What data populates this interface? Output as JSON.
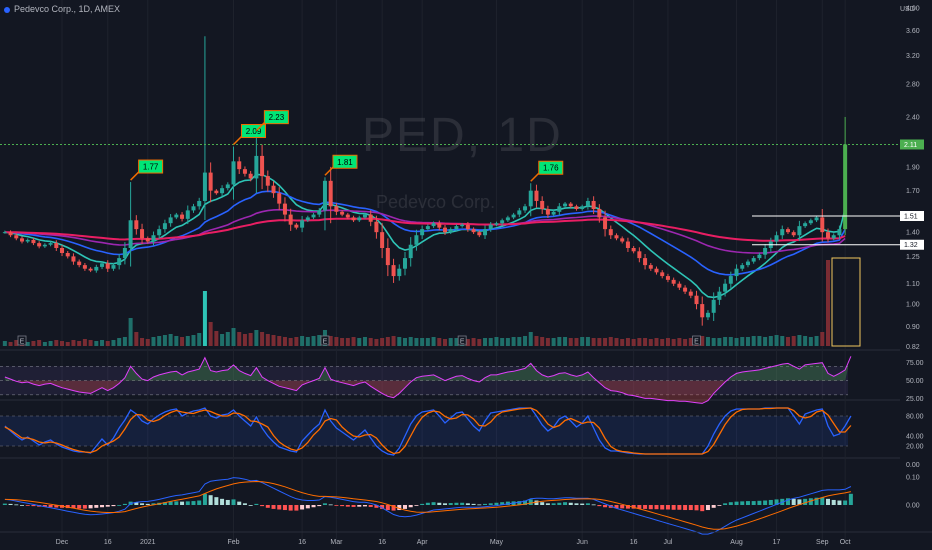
{
  "header": {
    "title": "Pedevco Corp., 1D, AMEX"
  },
  "watermark": {
    "ticker": "PED, 1D",
    "name": "Pedevco Corp."
  },
  "currency": "USD",
  "colors": {
    "bg": "#131722",
    "up": "#26a69a",
    "down": "#ef5350",
    "green": "#4caf50",
    "ema_fast": "#2ec4b6",
    "ema_mid": "#2962ff",
    "ema_slow": "#c2185b",
    "ema_long": "#e91e63"
  },
  "chart_data": [
    {
      "id": "price",
      "type": "candlestick",
      "scale": "log",
      "ylim": [
        0.8,
        4.2
      ],
      "y_ticks": [
        "0.82",
        "0.90",
        "1.00",
        "1.10",
        "1.25",
        "1.40",
        "1.50",
        "1.70",
        "1.90",
        "2.40",
        "2.80",
        "3.20",
        "3.60",
        "4.00"
      ],
      "x_ticks": [
        "Dec",
        "16",
        "2021",
        "Feb",
        "16",
        "Mar",
        "16",
        "Apr",
        "May",
        "Jun",
        "16",
        "Jul",
        "Aug",
        "17",
        "Sep",
        "Oct"
      ],
      "price_tags": [
        "2.11",
        "1.51",
        "1.32"
      ],
      "peak_labels": [
        {
          "text": "1.77",
          "date_index": 22
        },
        {
          "text": "2.09",
          "date_index": 40
        },
        {
          "text": "2.23",
          "date_index": 44
        },
        {
          "text": "1.81",
          "date_index": 56
        },
        {
          "text": "1.76",
          "date_index": 92
        }
      ],
      "volume_markers": [
        "E",
        "E",
        "E",
        "E"
      ],
      "close": [
        1.4,
        1.38,
        1.36,
        1.34,
        1.35,
        1.33,
        1.31,
        1.32,
        1.33,
        1.3,
        1.27,
        1.25,
        1.22,
        1.2,
        1.18,
        1.17,
        1.19,
        1.21,
        1.18,
        1.2,
        1.24,
        1.3,
        1.48,
        1.42,
        1.36,
        1.34,
        1.38,
        1.42,
        1.46,
        1.5,
        1.52,
        1.49,
        1.55,
        1.58,
        1.62,
        1.85,
        1.7,
        1.68,
        1.72,
        1.75,
        1.95,
        1.88,
        1.84,
        1.8,
        2.0,
        1.82,
        1.74,
        1.68,
        1.6,
        1.52,
        1.45,
        1.43,
        1.48,
        1.5,
        1.52,
        1.55,
        1.78,
        1.58,
        1.54,
        1.52,
        1.5,
        1.48,
        1.5,
        1.52,
        1.47,
        1.4,
        1.3,
        1.2,
        1.14,
        1.18,
        1.24,
        1.32,
        1.38,
        1.42,
        1.44,
        1.46,
        1.43,
        1.4,
        1.42,
        1.44,
        1.45,
        1.42,
        1.4,
        1.38,
        1.42,
        1.45,
        1.46,
        1.48,
        1.5,
        1.52,
        1.55,
        1.58,
        1.7,
        1.62,
        1.56,
        1.52,
        1.54,
        1.58,
        1.6,
        1.58,
        1.56,
        1.58,
        1.62,
        1.56,
        1.5,
        1.42,
        1.38,
        1.36,
        1.34,
        1.3,
        1.28,
        1.24,
        1.2,
        1.18,
        1.16,
        1.14,
        1.12,
        1.1,
        1.08,
        1.06,
        1.04,
        1.0,
        0.94,
        0.96,
        1.02,
        1.06,
        1.1,
        1.14,
        1.18,
        1.2,
        1.22,
        1.24,
        1.26,
        1.3,
        1.34,
        1.38,
        1.42,
        1.4,
        1.38,
        1.44,
        1.46,
        1.48,
        1.5,
        1.4,
        1.36,
        1.38,
        1.42,
        2.11
      ],
      "ema_periods": [
        8,
        21,
        50,
        100
      ]
    },
    {
      "id": "volume",
      "type": "bar",
      "values": [
        5,
        4,
        6,
        5,
        4,
        5,
        6,
        4,
        5,
        6,
        5,
        4,
        6,
        5,
        7,
        6,
        5,
        6,
        5,
        6,
        8,
        9,
        28,
        14,
        8,
        7,
        9,
        10,
        11,
        12,
        10,
        9,
        10,
        11,
        13,
        55,
        24,
        15,
        12,
        14,
        18,
        14,
        12,
        13,
        16,
        14,
        12,
        11,
        10,
        9,
        8,
        9,
        10,
        9,
        10,
        11,
        16,
        10,
        9,
        8,
        8,
        9,
        8,
        9,
        8,
        7,
        8,
        9,
        10,
        9,
        8,
        9,
        8,
        8,
        8,
        9,
        8,
        7,
        8,
        8,
        8,
        7,
        8,
        7,
        8,
        8,
        9,
        8,
        8,
        9,
        9,
        10,
        14,
        10,
        9,
        8,
        8,
        9,
        9,
        8,
        8,
        9,
        9,
        8,
        8,
        8,
        9,
        8,
        7,
        8,
        7,
        8,
        8,
        7,
        8,
        7,
        8,
        7,
        8,
        7,
        8,
        9,
        10,
        9,
        8,
        8,
        9,
        9,
        8,
        9,
        9,
        10,
        10,
        9,
        10,
        11,
        10,
        9,
        10,
        11,
        10,
        9,
        10,
        14,
        86
      ]
    },
    {
      "id": "rsi",
      "type": "line",
      "levels": [
        70,
        50,
        30
      ],
      "y_ticks": [
        "75.00",
        "50.00",
        "25.00"
      ],
      "values": [
        55,
        52,
        49,
        47,
        48,
        45,
        43,
        45,
        46,
        43,
        40,
        38,
        36,
        34,
        33,
        32,
        36,
        40,
        36,
        40,
        46,
        54,
        70,
        60,
        52,
        50,
        55,
        58,
        60,
        62,
        63,
        58,
        62,
        64,
        66,
        82,
        64,
        62,
        64,
        65,
        72,
        64,
        60,
        57,
        68,
        55,
        50,
        46,
        42,
        40,
        38,
        36,
        44,
        47,
        50,
        53,
        68,
        52,
        49,
        47,
        45,
        43,
        46,
        48,
        42,
        37,
        32,
        28,
        26,
        32,
        40,
        48,
        54,
        56,
        57,
        58,
        54,
        50,
        53,
        56,
        57,
        53,
        50,
        48,
        54,
        58,
        58,
        60,
        62,
        63,
        65,
        67,
        74,
        64,
        58,
        55,
        57,
        60,
        61,
        58,
        56,
        58,
        62,
        54,
        47,
        40,
        36,
        35,
        33,
        30,
        29,
        27,
        25,
        25,
        24,
        23,
        22,
        22,
        21,
        21,
        20,
        19,
        18,
        22,
        32,
        40,
        48,
        55,
        60,
        62,
        63,
        64,
        65,
        67,
        69,
        71,
        73,
        74,
        70,
        66,
        72,
        73,
        74,
        75,
        60,
        56,
        60,
        65,
        84
      ]
    },
    {
      "id": "stochastic",
      "type": "line",
      "levels": [
        80,
        20
      ],
      "y_ticks": [
        "80.00",
        "40.00",
        "20.00",
        "0.00"
      ],
      "k": [
        60,
        50,
        40,
        32,
        38,
        30,
        22,
        28,
        32,
        24,
        18,
        14,
        10,
        8,
        8,
        6,
        20,
        34,
        22,
        36,
        56,
        72,
        92,
        84,
        70,
        64,
        74,
        82,
        88,
        92,
        94,
        80,
        86,
        90,
        92,
        96,
        80,
        76,
        82,
        84,
        92,
        80,
        70,
        60,
        78,
        56,
        40,
        28,
        18,
        14,
        10,
        8,
        30,
        42,
        54,
        64,
        92,
        70,
        56,
        48,
        40,
        32,
        42,
        52,
        36,
        20,
        10,
        4,
        2,
        16,
        40,
        64,
        80,
        88,
        90,
        92,
        80,
        66,
        76,
        86,
        88,
        74,
        60,
        50,
        70,
        86,
        88,
        90,
        92,
        94,
        96,
        96,
        96,
        80,
        62,
        50,
        58,
        74,
        80,
        70,
        58,
        66,
        80,
        56,
        32,
        16,
        10,
        10,
        8,
        6,
        5,
        4,
        4,
        4,
        4,
        4,
        4,
        4,
        4,
        4,
        4,
        4,
        4,
        20,
        44,
        64,
        80,
        90,
        94,
        94,
        94,
        94,
        94,
        96,
        96,
        96,
        96,
        96,
        80,
        64,
        84,
        88,
        92,
        94,
        60,
        40,
        44,
        60,
        80
      ],
      "d": [
        58,
        52,
        44,
        36,
        36,
        33,
        28,
        26,
        28,
        26,
        22,
        17,
        13,
        10,
        8,
        7,
        11,
        20,
        25,
        30,
        38,
        54,
        73,
        83,
        82,
        72,
        69,
        73,
        81,
        87,
        91,
        88,
        86,
        85,
        89,
        92,
        89,
        84,
        80,
        80,
        86,
        85,
        80,
        70,
        69,
        64,
        58,
        41,
        28,
        20,
        14,
        11,
        16,
        27,
        42,
        53,
        70,
        75,
        72,
        58,
        48,
        40,
        38,
        42,
        43,
        36,
        22,
        11,
        5,
        7,
        19,
        40,
        61,
        77,
        86,
        90,
        88,
        79,
        74,
        76,
        83,
        82,
        74,
        61,
        60,
        68,
        81,
        88,
        90,
        92,
        94,
        95,
        96,
        91,
        79,
        64,
        57,
        61,
        71,
        75,
        70,
        65,
        68,
        67,
        56,
        35,
        19,
        12,
        9,
        8,
        6,
        5,
        4,
        4,
        4,
        4,
        4,
        4,
        4,
        4,
        4,
        4,
        4,
        9,
        23,
        43,
        63,
        78,
        88,
        93,
        94,
        94,
        94,
        95,
        95,
        96,
        96,
        96,
        91,
        80,
        76,
        79,
        88,
        91,
        82,
        65,
        48,
        48,
        61
      ]
    },
    {
      "id": "macd",
      "type": "histogram",
      "y_ticks": [
        "0.10",
        "0.00"
      ],
      "histogram": [
        0.005,
        0.004,
        0.002,
        0.0,
        -0.002,
        -0.004,
        -0.006,
        -0.007,
        -0.008,
        -0.009,
        -0.01,
        -0.011,
        -0.012,
        -0.013,
        -0.013,
        -0.012,
        -0.01,
        -0.008,
        -0.006,
        -0.004,
        0.0,
        0.004,
        0.012,
        0.01,
        0.006,
        0.004,
        0.006,
        0.008,
        0.01,
        0.012,
        0.013,
        0.012,
        0.013,
        0.014,
        0.016,
        0.04,
        0.035,
        0.028,
        0.022,
        0.018,
        0.02,
        0.012,
        0.006,
        0.0,
        0.004,
        -0.004,
        -0.01,
        -0.014,
        -0.016,
        -0.018,
        -0.02,
        -0.02,
        -0.016,
        -0.012,
        -0.008,
        -0.004,
        0.006,
        0.002,
        -0.002,
        -0.004,
        -0.006,
        -0.007,
        -0.006,
        -0.005,
        -0.007,
        -0.01,
        -0.014,
        -0.018,
        -0.02,
        -0.018,
        -0.014,
        -0.008,
        -0.002,
        0.004,
        0.008,
        0.01,
        0.008,
        0.006,
        0.007,
        0.008,
        0.008,
        0.006,
        0.004,
        0.002,
        0.004,
        0.006,
        0.008,
        0.01,
        0.012,
        0.013,
        0.014,
        0.016,
        0.02,
        0.016,
        0.01,
        0.006,
        0.006,
        0.008,
        0.01,
        0.008,
        0.006,
        0.005,
        0.006,
        0.002,
        -0.004,
        -0.008,
        -0.01,
        -0.012,
        -0.012,
        -0.013,
        -0.013,
        -0.014,
        -0.014,
        -0.015,
        -0.015,
        -0.016,
        -0.016,
        -0.017,
        -0.017,
        -0.018,
        -0.018,
        -0.019,
        -0.022,
        -0.018,
        -0.01,
        -0.002,
        0.006,
        0.01,
        0.012,
        0.013,
        0.014,
        0.014,
        0.015,
        0.016,
        0.018,
        0.02,
        0.022,
        0.024,
        0.022,
        0.02,
        0.022,
        0.024,
        0.026,
        0.027,
        0.022,
        0.018,
        0.016,
        0.016,
        0.04
      ],
      "macd": [
        0.02,
        0.018,
        0.014,
        0.01,
        0.006,
        0.002,
        -0.002,
        -0.006,
        -0.01,
        -0.014,
        -0.018,
        -0.022,
        -0.026,
        -0.03,
        -0.033,
        -0.035,
        -0.034,
        -0.032,
        -0.03,
        -0.027,
        -0.022,
        -0.015,
        0.005,
        0.01,
        0.012,
        0.013,
        0.016,
        0.02,
        0.025,
        0.03,
        0.034,
        0.036,
        0.04,
        0.044,
        0.048,
        0.075,
        0.085,
        0.088,
        0.09,
        0.092,
        0.098,
        0.096,
        0.092,
        0.086,
        0.088,
        0.08,
        0.07,
        0.06,
        0.05,
        0.04,
        0.03,
        0.022,
        0.018,
        0.016,
        0.016,
        0.018,
        0.03,
        0.028,
        0.024,
        0.02,
        0.016,
        0.012,
        0.01,
        0.01,
        0.006,
        0.0,
        -0.01,
        -0.022,
        -0.034,
        -0.04,
        -0.042,
        -0.04,
        -0.036,
        -0.03,
        -0.024,
        -0.018,
        -0.016,
        -0.014,
        -0.012,
        -0.01,
        -0.008,
        -0.008,
        -0.008,
        -0.008,
        -0.006,
        -0.004,
        -0.002,
        0.001,
        0.004,
        0.007,
        0.01,
        0.014,
        0.022,
        0.024,
        0.024,
        0.022,
        0.022,
        0.024,
        0.026,
        0.026,
        0.024,
        0.024,
        0.024,
        0.02,
        0.012,
        0.004,
        -0.004,
        -0.012,
        -0.018,
        -0.024,
        -0.03,
        -0.036,
        -0.042,
        -0.048,
        -0.054,
        -0.06,
        -0.066,
        -0.072,
        -0.078,
        -0.084,
        -0.09,
        -0.096,
        -0.104,
        -0.104,
        -0.098,
        -0.088,
        -0.076,
        -0.064,
        -0.054,
        -0.046,
        -0.038,
        -0.03,
        -0.022,
        -0.014,
        -0.006,
        0.002,
        0.01,
        0.018,
        0.024,
        0.028,
        0.034,
        0.04,
        0.046,
        0.052,
        0.054,
        0.054,
        0.054,
        0.056,
        0.066
      ]
    }
  ]
}
